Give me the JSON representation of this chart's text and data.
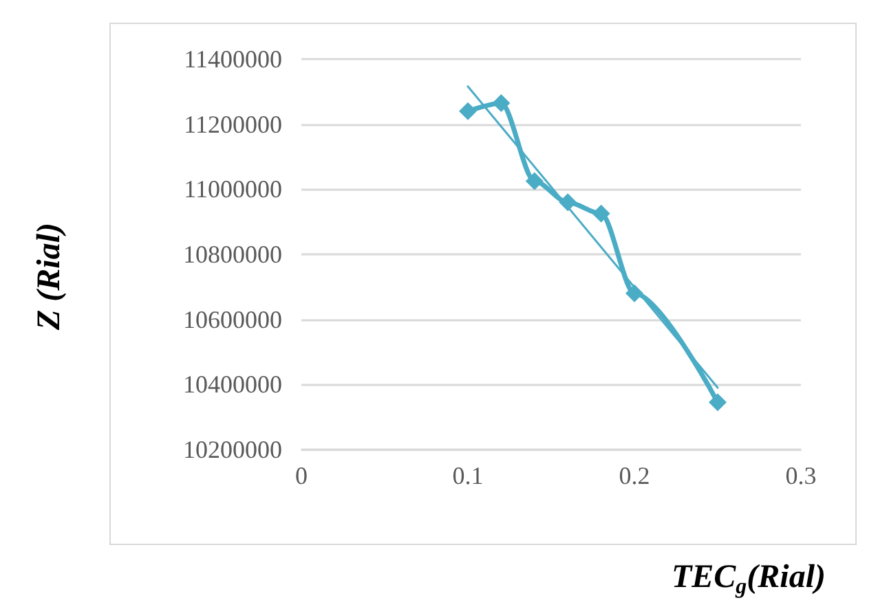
{
  "chart_data": {
    "type": "line",
    "xlabel": "TEC$_{g}$(Rial)",
    "ylabel": "Z (Rial)",
    "x": [
      0.1,
      0.12,
      0.14,
      0.16,
      0.18,
      0.2,
      0.25
    ],
    "series": [
      {
        "color": "#4bacc6",
        "values": [
          11240000,
          11265000,
          11025000,
          10960000,
          10925000,
          10680000,
          10345000
        ],
        "marker": "diamond"
      },
      {
        "color": "#4bacc6",
        "x": [
          0.1,
          0.25
        ],
        "values": [
          11316000,
          10390000
        ],
        "marker": "none"
      }
    ],
    "xlim": [
      0,
      0.3
    ],
    "xticks": [
      0,
      0.1,
      0.2,
      0.3
    ],
    "ylim": [
      10200000,
      11400000
    ],
    "yticks": [
      10200000,
      10400000,
      10600000,
      10800000,
      11000000,
      11200000,
      11400000
    ],
    "grid": "y"
  }
}
